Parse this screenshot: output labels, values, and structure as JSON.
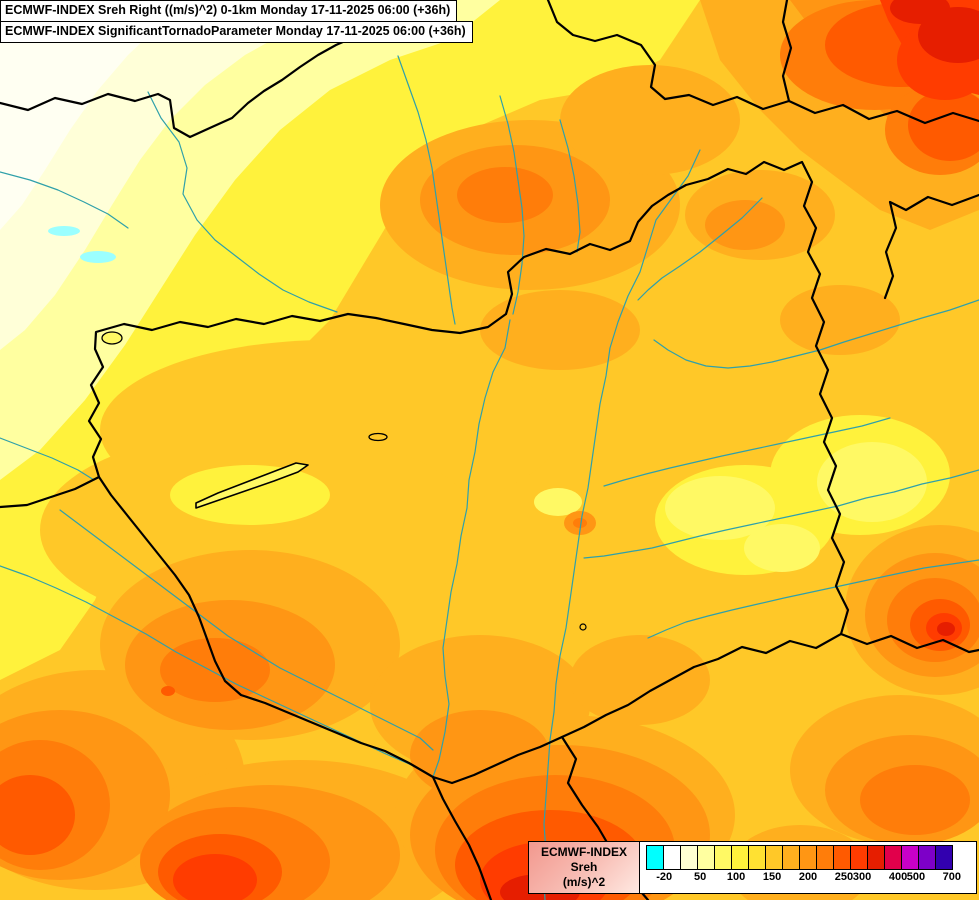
{
  "titles": {
    "line1": "ECMWF-INDEX Sreh Right ((m/s)^2) 0-1km Monday 17-11-2025 06:00 (+36h)",
    "line2": "ECMWF-INDEX SignificantTornadoParameter Monday 17-11-2025 06:00 (+36h)"
  },
  "legend": {
    "product": "ECMWF-INDEX",
    "parameter": "Sreh",
    "units": "(m/s)^2",
    "swatches": [
      "#00FFFF",
      "#FFFFFF",
      "#FFFFD2",
      "#FFFFA0",
      "#FFF964",
      "#FFF23C",
      "#FFE132",
      "#FFC828",
      "#FFAF1E",
      "#FF9614",
      "#FF7D0A",
      "#FF5A00",
      "#FF3C00",
      "#E61E00",
      "#E1004B",
      "#C800C8",
      "#7D00C8",
      "#3200AF"
    ],
    "ticks": [
      {
        "label": "-20",
        "pos": 0.056
      },
      {
        "label": "50",
        "pos": 0.167
      },
      {
        "label": "100",
        "pos": 0.278
      },
      {
        "label": "150",
        "pos": 0.389
      },
      {
        "label": "200",
        "pos": 0.5
      },
      {
        "label": "250",
        "pos": 0.611
      },
      {
        "label": "300",
        "pos": 0.667
      },
      {
        "label": "400",
        "pos": 0.778
      },
      {
        "label": "500",
        "pos": 0.833
      },
      {
        "label": "700",
        "pos": 0.944
      }
    ]
  },
  "palette": {
    "gold": "#FFC828",
    "yellow": "#FFF23C",
    "lightyellow": "#FFF964",
    "paleyellow": "#FFFFA0",
    "cream": "#FFFFD8",
    "white": "#FFFFF2",
    "cyan": "#9BFFFF",
    "amber": "#FFAF1E",
    "orange": "#FF9614",
    "dorange": "#FF7D0A",
    "redorange": "#FF5A00",
    "red": "#FF3C00",
    "darkred": "#E61E00",
    "border": "#000000",
    "river": "#2FA0AA"
  }
}
